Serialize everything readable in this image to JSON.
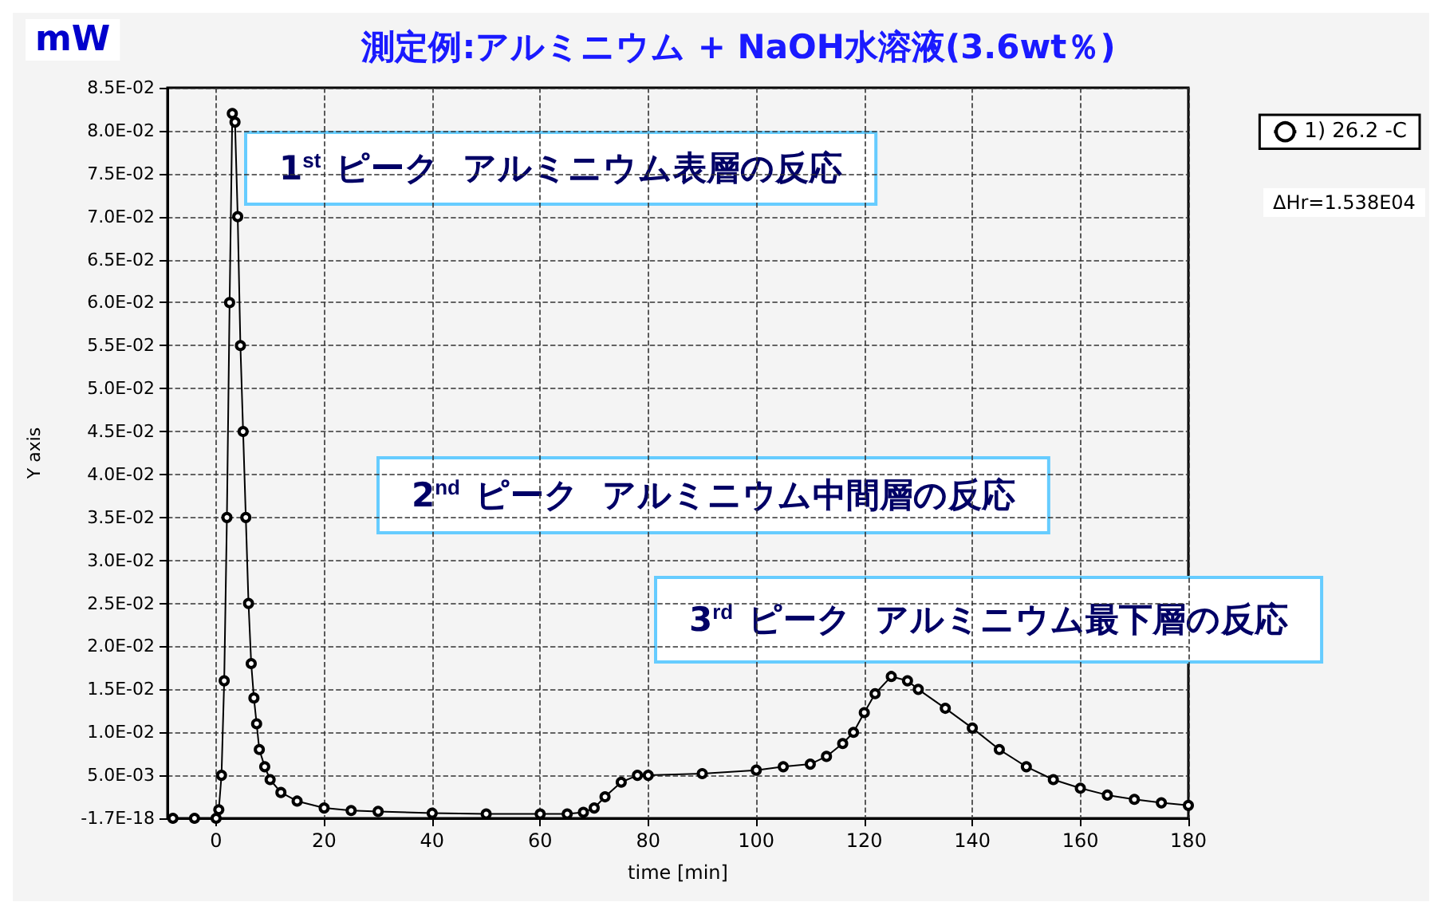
{
  "chart_data": {
    "type": "line",
    "title": "測定例:アルミニウム + NaOH水溶液(3.6wt％)",
    "xlabel": "time [min]",
    "ylabel": "Y axis",
    "annotations": [
      "mW",
      "1$^{st}$ ピーク  アルミニウム表層の反応",
      "2$^{nd}$ ピーク  アルミニウム中間層の反応",
      "3$^{rd}$ ピーク  アルミニウム最下層の反応",
      "ΔHr=1.538E04"
    ],
    "series": [
      {
        "name": "1) 26.2 -C",
        "color": "#000000",
        "x": [
          -8,
          -4,
          0,
          0.5,
          1,
          1.5,
          2,
          2.5,
          3,
          3.5,
          4,
          4.5,
          5,
          5.5,
          6,
          6.5,
          7,
          7.5,
          8,
          9,
          10,
          12,
          15,
          20,
          25,
          30,
          40,
          50,
          60,
          65,
          68,
          70,
          72,
          75,
          78,
          80,
          90,
          100,
          105,
          110,
          113,
          116,
          118,
          120,
          122,
          125,
          128,
          130,
          135,
          140,
          145,
          150,
          155,
          160,
          165,
          170,
          175,
          180
        ],
        "values": [
          0,
          0,
          0,
          0.001,
          0.005,
          0.016,
          0.035,
          0.06,
          0.082,
          0.081,
          0.07,
          0.055,
          0.045,
          0.035,
          0.025,
          0.018,
          0.014,
          0.011,
          0.008,
          0.006,
          0.0045,
          0.003,
          0.002,
          0.0012,
          0.0009,
          0.0008,
          0.0006,
          0.0005,
          0.0005,
          0.0005,
          0.0007,
          0.0012,
          0.0025,
          0.0042,
          0.005,
          0.005,
          0.0052,
          0.0056,
          0.006,
          0.0063,
          0.0072,
          0.0087,
          0.01,
          0.0123,
          0.0145,
          0.0165,
          0.016,
          0.015,
          0.0128,
          0.0105,
          0.008,
          0.006,
          0.0045,
          0.0035,
          0.0027,
          0.0022,
          0.0018,
          0.0015
        ]
      }
    ],
    "xlim": [
      -9,
      180
    ],
    "xticks": [
      0,
      20,
      40,
      60,
      80,
      100,
      120,
      140,
      160,
      180
    ],
    "ylim": [
      0,
      0.085
    ],
    "yticks": [
      {
        "value": 0,
        "label": "-1.7E-18"
      },
      {
        "value": 0.005,
        "label": "5.0E-03"
      },
      {
        "value": 0.01,
        "label": "1.0E-02"
      },
      {
        "value": 0.015,
        "label": "1.5E-02"
      },
      {
        "value": 0.02,
        "label": "2.0E-02"
      },
      {
        "value": 0.025,
        "label": "2.5E-02"
      },
      {
        "value": 0.03,
        "label": "3.0E-02"
      },
      {
        "value": 0.035,
        "label": "3.5E-02"
      },
      {
        "value": 0.04,
        "label": "4.0E-02"
      },
      {
        "value": 0.045,
        "label": "4.5E-02"
      },
      {
        "value": 0.05,
        "label": "5.0E-02"
      },
      {
        "value": 0.055,
        "label": "5.5E-02"
      },
      {
        "value": 0.06,
        "label": "6.0E-02"
      },
      {
        "value": 0.065,
        "label": "6.5E-02"
      },
      {
        "value": 0.07,
        "label": "7.0E-02"
      },
      {
        "value": 0.075,
        "label": "7.5E-02"
      },
      {
        "value": 0.08,
        "label": "8.0E-02"
      },
      {
        "value": 0.085,
        "label": "8.5E-02"
      }
    ],
    "grid": true,
    "legend": "top right",
    "marker": "circle",
    "line_style": "solid"
  }
}
